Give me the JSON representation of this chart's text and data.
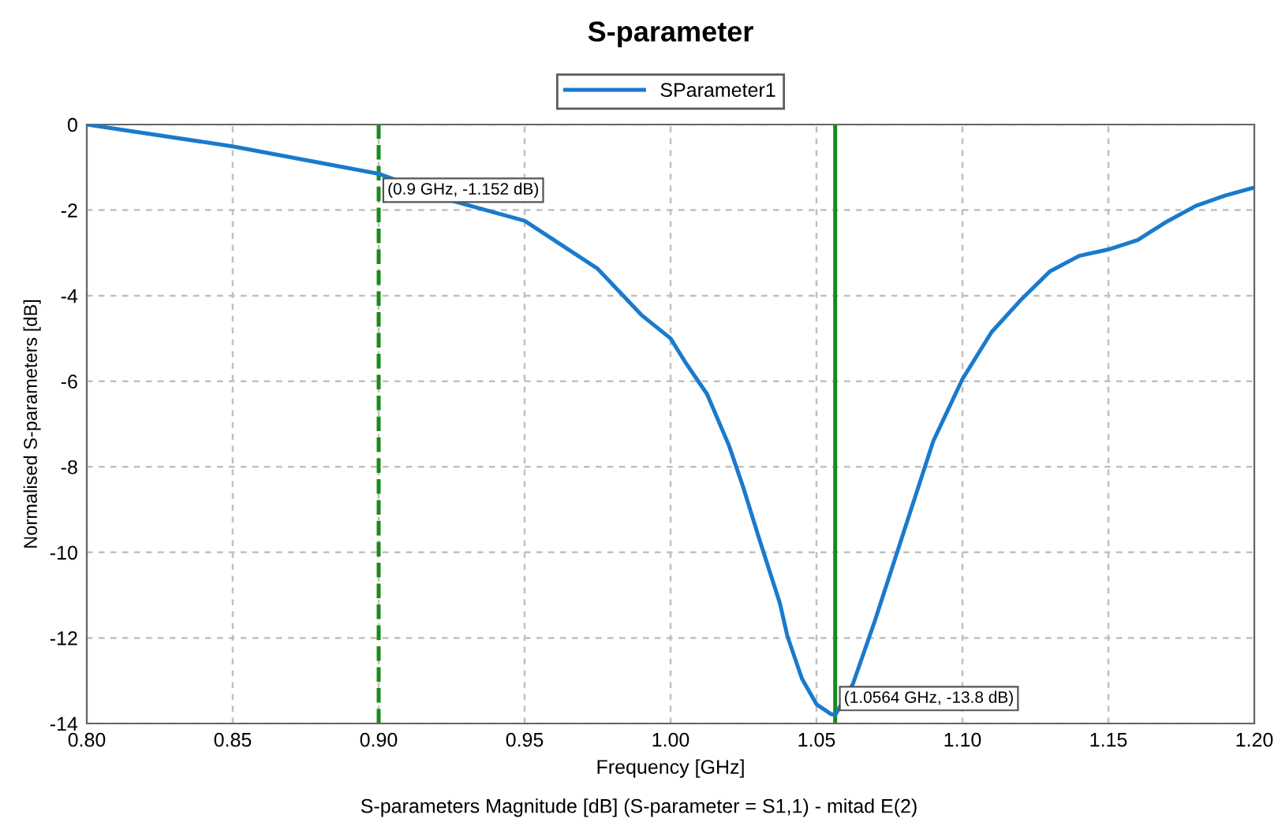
{
  "chart_data": {
    "type": "line",
    "title": "S-parameter",
    "xlabel": "Frequency [GHz]",
    "ylabel": "Normalised S-parameters [dB]",
    "x": [
      0.8,
      0.85,
      0.9,
      0.925,
      0.95,
      0.975,
      0.99,
      1.0,
      1.005,
      1.0125,
      1.02,
      1.025,
      1.03,
      1.0375,
      1.04,
      1.045,
      1.05,
      1.055,
      1.0564,
      1.0625,
      1.07,
      1.08,
      1.09,
      1.1,
      1.11,
      1.12,
      1.13,
      1.14,
      1.15,
      1.16,
      1.17,
      1.18,
      1.19,
      1.2
    ],
    "series": [
      {
        "name": "SParameter1",
        "color": "#1a7acc",
        "values": [
          0,
          -0.51,
          -1.15,
          -1.78,
          -2.25,
          -3.37,
          -4.45,
          -5.0,
          -5.55,
          -6.3,
          -7.5,
          -8.5,
          -9.6,
          -11.2,
          -11.95,
          -12.95,
          -13.55,
          -13.78,
          -13.8,
          -13.07,
          -11.6,
          -9.5,
          -7.4,
          -5.95,
          -4.85,
          -4.1,
          -3.43,
          -3.07,
          -2.92,
          -2.7,
          -2.27,
          -1.9,
          -1.66,
          -1.47
        ]
      }
    ],
    "xlim": [
      0.8,
      1.2
    ],
    "xticks": [
      {
        "value": 0.8,
        "label": "0.80"
      },
      {
        "value": 0.85,
        "label": "0.85"
      },
      {
        "value": 0.9,
        "label": "0.90"
      },
      {
        "value": 0.95,
        "label": "0.95"
      },
      {
        "value": 1.0,
        "label": "1.00"
      },
      {
        "value": 1.05,
        "label": "1.05"
      },
      {
        "value": 1.1,
        "label": "1.10"
      },
      {
        "value": 1.15,
        "label": "1.15"
      },
      {
        "value": 1.2,
        "label": "1.20"
      }
    ],
    "ylim": [
      -14,
      0
    ],
    "yticks": [
      -14,
      -12,
      -10,
      -8,
      -6,
      -4,
      -2,
      0
    ],
    "ref_lines": [
      {
        "axis": "x",
        "value": 0.9,
        "color": "#1a8a1a",
        "line_style": "dashed"
      },
      {
        "axis": "x",
        "value": 1.0564,
        "color": "#1a8a1a",
        "line_style": "solid"
      }
    ],
    "annotations": [
      {
        "text": "(0.9 GHz, -1.152 dB)",
        "x": 0.9,
        "y": -1.152
      },
      {
        "text": "(1.0564 GHz, -13.8 dB)",
        "x": 1.0564,
        "y": -13.8
      },
      "S-parameters Magnitude [dB] (S-parameter = S1,1) - mitad E(2)"
    ],
    "grid": true,
    "legend": "top",
    "line_style": "solid",
    "marker": "none"
  }
}
